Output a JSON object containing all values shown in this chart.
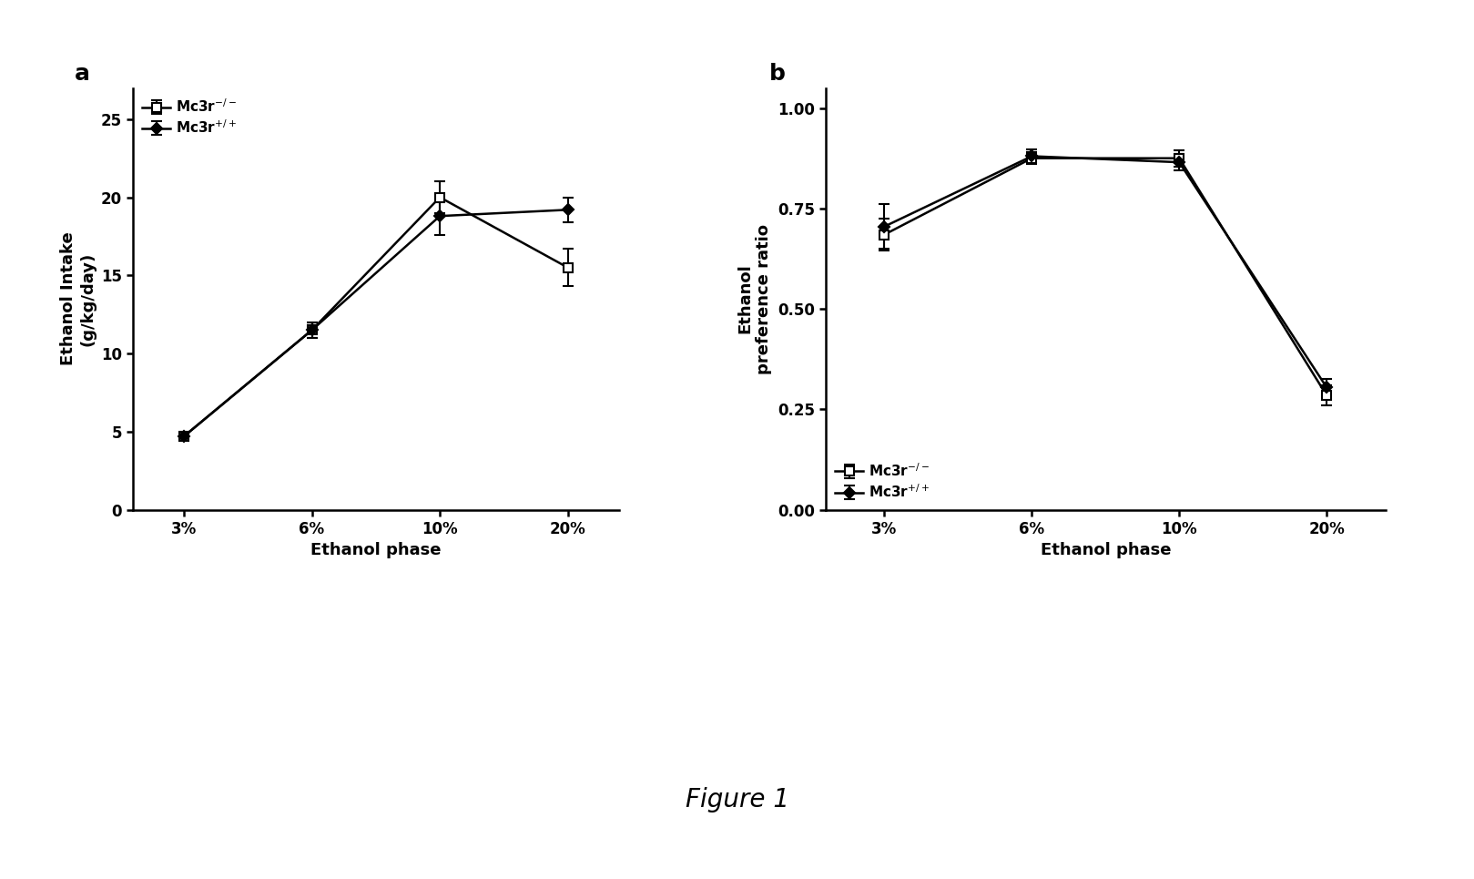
{
  "panel_a": {
    "panel_label": "a",
    "xlabel": "Ethanol phase",
    "ylabel": "Ethanol Intake\n(g/kg/day)",
    "x_labels": [
      "3%",
      "6%",
      "10%",
      "20%"
    ],
    "x_values": [
      1,
      2,
      3,
      4
    ],
    "series": [
      {
        "label": "Mc3r-/-",
        "y": [
          4.7,
          11.5,
          20.0,
          15.5
        ],
        "yerr": [
          0.25,
          0.5,
          1.0,
          1.2
        ],
        "marker": "s",
        "filled": false
      },
      {
        "label": "Mc3r+/+",
        "y": [
          4.7,
          11.5,
          18.8,
          19.2
        ],
        "yerr": [
          0.25,
          0.5,
          1.2,
          0.8
        ],
        "marker": "D",
        "filled": true
      }
    ],
    "ylim": [
      0,
      27
    ],
    "yticks": [
      0,
      5,
      10,
      15,
      20,
      25
    ]
  },
  "panel_b": {
    "panel_label": "b",
    "xlabel": "Ethanol phase",
    "ylabel": "Ethanol\npreference ratio",
    "x_labels": [
      "3%",
      "6%",
      "10%",
      "20%"
    ],
    "x_values": [
      1,
      2,
      3,
      4
    ],
    "series": [
      {
        "label": "Mc3r-/-",
        "y": [
          0.685,
          0.875,
          0.875,
          0.285
        ],
        "yerr": [
          0.04,
          0.015,
          0.02,
          0.025
        ],
        "marker": "s",
        "filled": false
      },
      {
        "label": "Mc3r+/+",
        "y": [
          0.705,
          0.88,
          0.865,
          0.305
        ],
        "yerr": [
          0.055,
          0.018,
          0.02,
          0.02
        ],
        "marker": "D",
        "filled": true
      }
    ],
    "ylim": [
      0.0,
      1.05
    ],
    "yticks": [
      0.0,
      0.25,
      0.5,
      0.75,
      1.0
    ]
  },
  "figure_label": "Figure 1",
  "bg_color": "white",
  "line_color": "black",
  "linewidth": 1.8,
  "markersize_open": 7,
  "markersize_filled": 6,
  "capsize": 4,
  "elinewidth": 1.5,
  "capthick": 1.5,
  "spine_linewidth": 1.8,
  "tick_fontsize": 12,
  "label_fontsize": 13,
  "legend_fontsize": 11,
  "panel_label_fontsize": 18,
  "figure_label_fontsize": 20
}
